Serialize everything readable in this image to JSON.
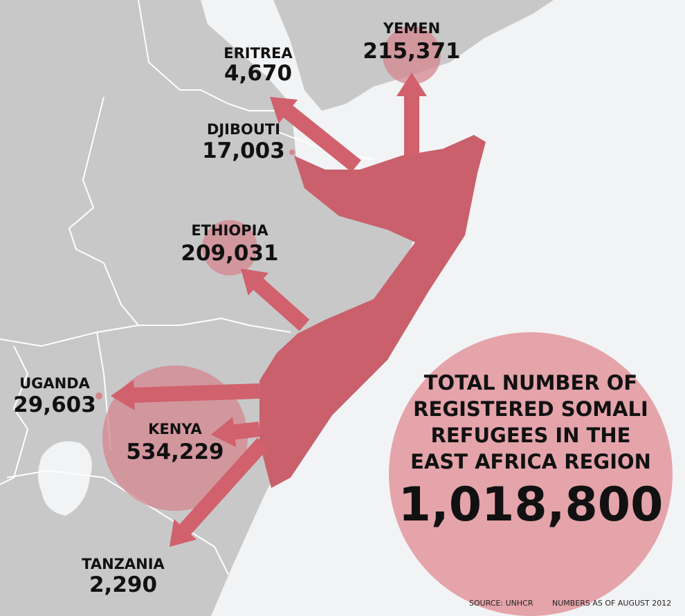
{
  "countries": [
    {
      "name": "YEMEN",
      "value": "215,371"
    },
    {
      "name": "ERITREA",
      "value": "4,670"
    },
    {
      "name": "DJIBOUTI",
      "value": "17,003"
    },
    {
      "name": "ETHIOPIA",
      "value": "209,031"
    },
    {
      "name": "UGANDA",
      "value": "29,603"
    },
    {
      "name": "KENYA",
      "value": "534,229"
    },
    {
      "name": "TANZANIA",
      "value": "2,290"
    }
  ],
  "total": {
    "title_lines": [
      "TOTAL NUMBER OF",
      "REGISTERED SOMALI",
      "REFUGEES IN THE",
      "EAST AFRICA REGION"
    ],
    "value": "1,018,800"
  },
  "footer": {
    "source": "SOURCE: UNHCR",
    "note": "NUMBERS AS OF AUGUST 2012"
  }
}
